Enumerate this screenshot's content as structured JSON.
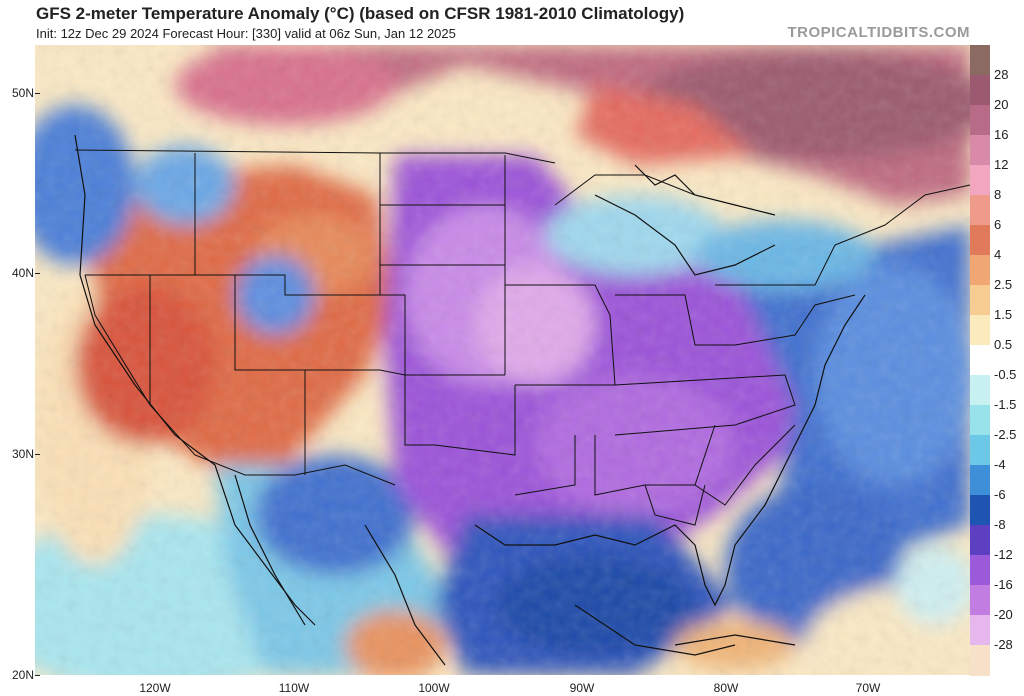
{
  "header": {
    "title": "GFS 2-meter Temperature Anomaly (°C) (based on CFSR 1981-2010 Climatology)",
    "subtitle": "Init: 12z Dec 29 2024   Forecast Hour: [330]   valid at 06z Sun, Jan 12 2025",
    "brand": "TROPICALTIDBITS.COM"
  },
  "axes": {
    "lat_labels": [
      "50N",
      "40N",
      "30N",
      "20N"
    ],
    "lon_labels": [
      "120W",
      "110W",
      "100W",
      "90W",
      "80W",
      "70W"
    ]
  },
  "colorbar": {
    "labels": [
      "28",
      "20",
      "16",
      "12",
      "8",
      "6",
      "4",
      "2.5",
      "1.5",
      "0.5",
      "-0.5",
      "-1.5",
      "-2.5",
      "-4",
      "-6",
      "-8",
      "-12",
      "-16",
      "-20",
      "-28"
    ],
    "colors": [
      "#8a6a62",
      "#9c5a70",
      "#b86b86",
      "#d98aa8",
      "#f2a6c0",
      "#ef9a8a",
      "#e07a5a",
      "#f0a774",
      "#f6cc93",
      "#fbeabc",
      "#ffffff",
      "#c8f2f2",
      "#98e2ea",
      "#6bc8e6",
      "#3d8fd8",
      "#1f55b2",
      "#5d40c2",
      "#9b5ad9",
      "#c17de2",
      "#e6b7ec",
      "#f7e1c8"
    ]
  },
  "map": {
    "region": "Continental United States",
    "colors": {
      "ocean_neutral": "#fbe9c4",
      "warm_west": "#e0673f",
      "hot_canada": "#c26a7f",
      "cold_purple": "#8e4ad0",
      "cold_blue": "#2a5cc0",
      "cool_cyan": "#7fd2ea"
    }
  }
}
